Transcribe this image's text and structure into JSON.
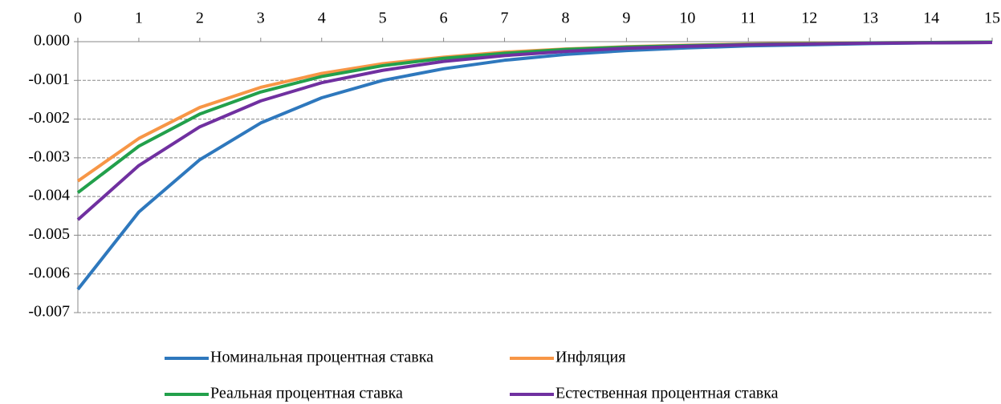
{
  "chart_data": {
    "type": "line",
    "x": [
      0,
      1,
      2,
      3,
      4,
      5,
      6,
      7,
      8,
      9,
      10,
      11,
      12,
      13,
      14,
      15
    ],
    "xlim": [
      0,
      15
    ],
    "xticks": [
      0,
      1,
      2,
      3,
      4,
      5,
      6,
      7,
      8,
      9,
      10,
      11,
      12,
      13,
      14,
      15
    ],
    "ylim": [
      -0.007,
      0
    ],
    "yticks": [
      {
        "value": 0,
        "label": "0.000"
      },
      -0.001,
      -0.002,
      -0.003,
      -0.004,
      -0.005,
      -0.006,
      -0.007
    ],
    "grid": true,
    "legend": "bottom",
    "series": [
      {
        "name": "Номинальная процентная ставка",
        "color": "#2e78bd",
        "values": [
          -0.0064,
          -0.0044,
          -0.00305,
          -0.0021,
          -0.00145,
          -0.001,
          -0.0007,
          -0.00048,
          -0.00033,
          -0.00023,
          -0.00016,
          -0.00011,
          -8e-05,
          -5e-05,
          -3e-05,
          -2e-05
        ]
      },
      {
        "name": "Инфляция",
        "color": "#f79646",
        "values": [
          -0.0036,
          -0.0025,
          -0.0017,
          -0.00118,
          -0.00082,
          -0.00057,
          -0.0004,
          -0.00027,
          -0.00019,
          -0.00013,
          -9e-05,
          -6e-05,
          -4e-05,
          -3e-05,
          -2e-05,
          -1e-05
        ]
      },
      {
        "name": "Реальная процентная ставка",
        "color": "#22a04b",
        "values": [
          -0.0039,
          -0.0027,
          -0.00187,
          -0.0013,
          -0.0009,
          -0.00062,
          -0.00043,
          -0.0003,
          -0.0002,
          -0.00014,
          -0.0001,
          -7e-05,
          -5e-05,
          -3e-05,
          -2e-05,
          -1e-05
        ]
      },
      {
        "name": "Естественная процентная ставка",
        "color": "#7030a0",
        "values": [
          -0.0046,
          -0.0032,
          -0.0022,
          -0.00153,
          -0.00106,
          -0.00074,
          -0.00051,
          -0.00036,
          -0.00025,
          -0.00017,
          -0.00012,
          -8e-05,
          -6e-05,
          -4e-05,
          -3e-05,
          -2e-05
        ]
      }
    ]
  }
}
